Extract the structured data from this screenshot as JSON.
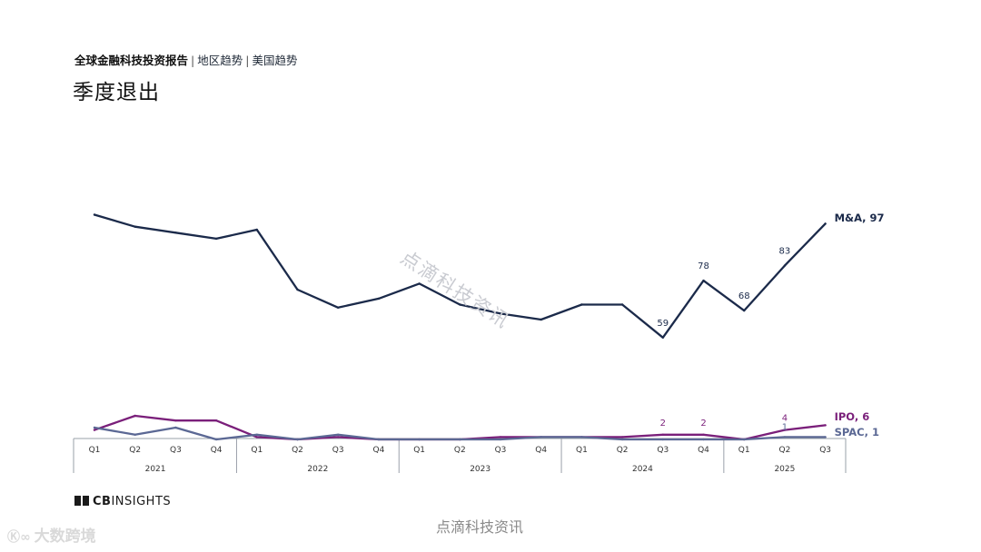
{
  "header": {
    "report": "全球金融科技投资报告",
    "section": "地区趋势",
    "subsection": "美国趋势",
    "title": "季度退出"
  },
  "chart_data": {
    "type": "line",
    "x": [
      "Q1",
      "Q2",
      "Q3",
      "Q4",
      "Q1",
      "Q2",
      "Q3",
      "Q4",
      "Q1",
      "Q2",
      "Q3",
      "Q4",
      "Q1",
      "Q2",
      "Q3",
      "Q4",
      "Q1",
      "Q2",
      "Q3"
    ],
    "year_groups": [
      {
        "year": "2021",
        "quarters": 4
      },
      {
        "year": "2022",
        "quarters": 4
      },
      {
        "year": "2023",
        "quarters": 4
      },
      {
        "year": "2024",
        "quarters": 4
      },
      {
        "year": "2025",
        "quarters": 3
      }
    ],
    "ylim": [
      0,
      100
    ],
    "series": [
      {
        "name": "M&A",
        "end_label": "M&A, 97",
        "color": "#1b2a4a",
        "values": [
          100,
          96,
          94,
          92,
          95,
          75,
          69,
          72,
          77,
          70,
          67,
          65,
          70,
          70,
          59,
          78,
          68,
          83,
          97
        ],
        "labels": {
          "14": "59",
          "15": "78",
          "16": "68",
          "17": "83"
        }
      },
      {
        "name": "IPO",
        "end_label": "IPO, 6",
        "color": "#7a1f7a",
        "values": [
          4,
          10,
          8,
          8,
          1,
          0,
          1,
          0,
          0,
          0,
          1,
          1,
          1,
          1,
          2,
          2,
          0,
          4,
          6
        ],
        "labels": {
          "14": "2",
          "15": "2",
          "17": "4"
        }
      },
      {
        "name": "SPAC",
        "end_label": "SPAC, 1",
        "color": "#5b6894",
        "values": [
          5,
          2,
          5,
          0,
          2,
          0,
          2,
          0,
          0,
          0,
          0,
          1,
          1,
          0,
          0,
          0,
          0,
          1,
          1
        ],
        "labels": {
          "17": "1"
        }
      }
    ]
  },
  "brand": {
    "logo_cb": "CB",
    "logo_rest": "INSIGHTS"
  },
  "watermark": {
    "text": "点滴科技资讯"
  },
  "footer": {
    "source": "点滴科技资讯"
  },
  "stamp": {
    "text": "大数跨境"
  }
}
